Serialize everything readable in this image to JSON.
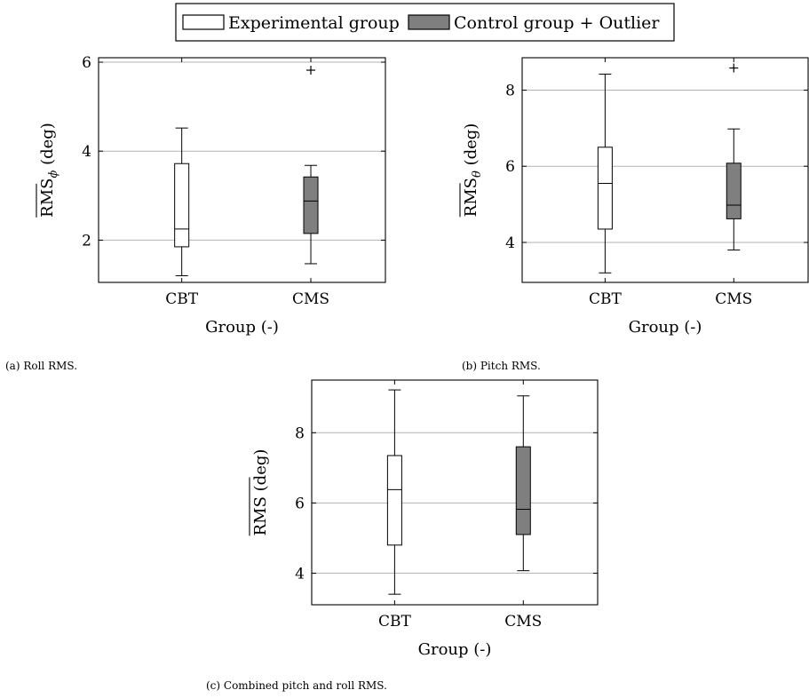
{
  "legend": {
    "experimental": "Experimental group",
    "control": "Control group + Outlier"
  },
  "colors": {
    "experimental_fill": "#ffffff",
    "control_fill": "#7f7f7f",
    "grid": "#b3b3b3"
  },
  "chart_data": [
    {
      "type": "box",
      "caption": "(a) Roll RMS.",
      "ylabel_main": "RMS",
      "ylabel_sub": "ϕ",
      "ylabel_unit": " (deg)",
      "xlabel": "Group (-)",
      "categories": [
        "CBT",
        "CMS"
      ],
      "ylim": [
        1.05,
        6.1
      ],
      "yticks": [
        2,
        4,
        6
      ],
      "grid": true,
      "boxes": [
        {
          "group": "Experimental group",
          "category": "CBT",
          "min": 1.2,
          "q1": 1.85,
          "median": 2.25,
          "q3": 3.72,
          "max": 4.52,
          "outliers": []
        },
        {
          "group": "Control group",
          "category": "CMS",
          "min": 1.47,
          "q1": 2.15,
          "median": 2.88,
          "q3": 3.42,
          "max": 3.68,
          "outliers": [
            5.82
          ]
        }
      ]
    },
    {
      "type": "box",
      "caption": "(b) Pitch RMS.",
      "ylabel_main": "RMS",
      "ylabel_sub": "θ",
      "ylabel_unit": " (deg)",
      "xlabel": "Group (-)",
      "categories": [
        "CBT",
        "CMS"
      ],
      "ylim": [
        2.95,
        8.85
      ],
      "yticks": [
        4,
        6,
        8
      ],
      "grid": true,
      "boxes": [
        {
          "group": "Experimental group",
          "category": "CBT",
          "min": 3.2,
          "q1": 4.35,
          "median": 5.55,
          "q3": 6.5,
          "max": 8.42,
          "outliers": []
        },
        {
          "group": "Control group",
          "category": "CMS",
          "min": 3.8,
          "q1": 4.62,
          "median": 4.98,
          "q3": 6.08,
          "max": 6.98,
          "outliers": [
            8.58
          ]
        }
      ]
    },
    {
      "type": "box",
      "caption": "(c) Combined pitch and roll RMS.",
      "ylabel_main": "RMS",
      "ylabel_sub": "",
      "ylabel_unit": " (deg)",
      "xlabel": "Group (-)",
      "categories": [
        "CBT",
        "CMS"
      ],
      "ylim": [
        3.1,
        9.5
      ],
      "yticks": [
        4,
        6,
        8
      ],
      "grid": true,
      "boxes": [
        {
          "group": "Experimental group",
          "category": "CBT",
          "min": 3.4,
          "q1": 4.8,
          "median": 6.38,
          "q3": 7.35,
          "max": 9.22,
          "outliers": []
        },
        {
          "group": "Control group",
          "category": "CMS",
          "min": 4.07,
          "q1": 5.1,
          "median": 5.82,
          "q3": 7.6,
          "max": 9.05,
          "outliers": []
        }
      ]
    }
  ]
}
